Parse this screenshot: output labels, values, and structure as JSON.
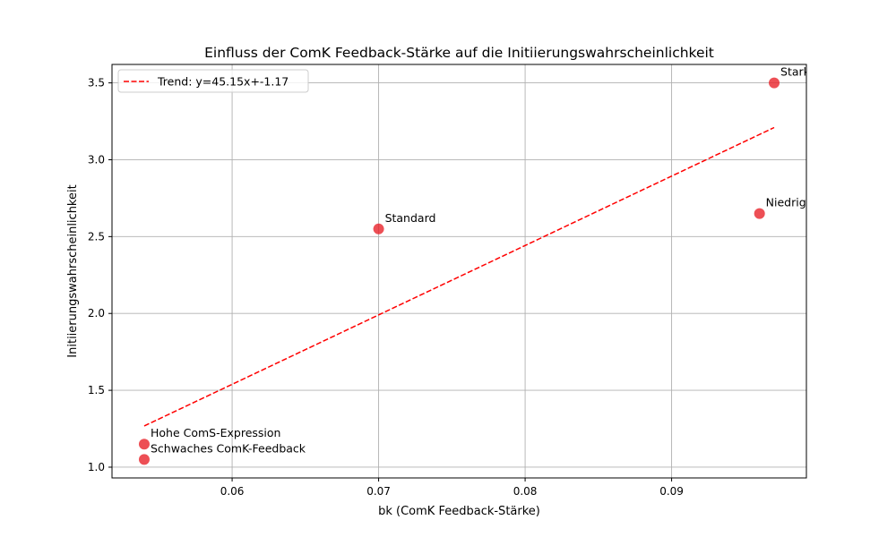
{
  "chart_data": {
    "type": "scatter",
    "title": "Einfluss der ComK Feedback-Stärke auf die Initiierungswahrscheinlichkeit",
    "xlabel": "bk (ComK Feedback-Stärke)",
    "ylabel": "Initiierungswahrscheinlichkeit",
    "xlim": [
      0.0518,
      0.0992
    ],
    "ylim": [
      0.93,
      3.62
    ],
    "xticks": [
      0.06,
      0.07,
      0.08,
      0.09
    ],
    "xtick_labels": [
      "0.06",
      "0.07",
      "0.08",
      "0.09"
    ],
    "yticks": [
      1.0,
      1.5,
      2.0,
      2.5,
      3.0,
      3.5
    ],
    "ytick_labels": [
      "1.0",
      "1.5",
      "2.0",
      "2.5",
      "3.0",
      "3.5"
    ],
    "grid": true,
    "legend_position": "top-left",
    "point_color": "#e8232a",
    "trend_color": "#ff0000",
    "points": [
      {
        "x": 0.054,
        "y": 1.15,
        "label": "Hohe ComS-Expression"
      },
      {
        "x": 0.054,
        "y": 1.05,
        "label": "Schwaches ComK-Feedback"
      },
      {
        "x": 0.07,
        "y": 2.55,
        "label": "Standard"
      },
      {
        "x": 0.096,
        "y": 2.65,
        "label": "Niedrige ComS-Expression"
      },
      {
        "x": 0.097,
        "y": 3.5,
        "label": "Starkes ComK-Feedback"
      }
    ],
    "trend": {
      "label": "Trend: y=45.15x+-1.17",
      "slope": 45.15,
      "intercept": -1.17,
      "x_range": [
        0.054,
        0.097
      ]
    }
  }
}
